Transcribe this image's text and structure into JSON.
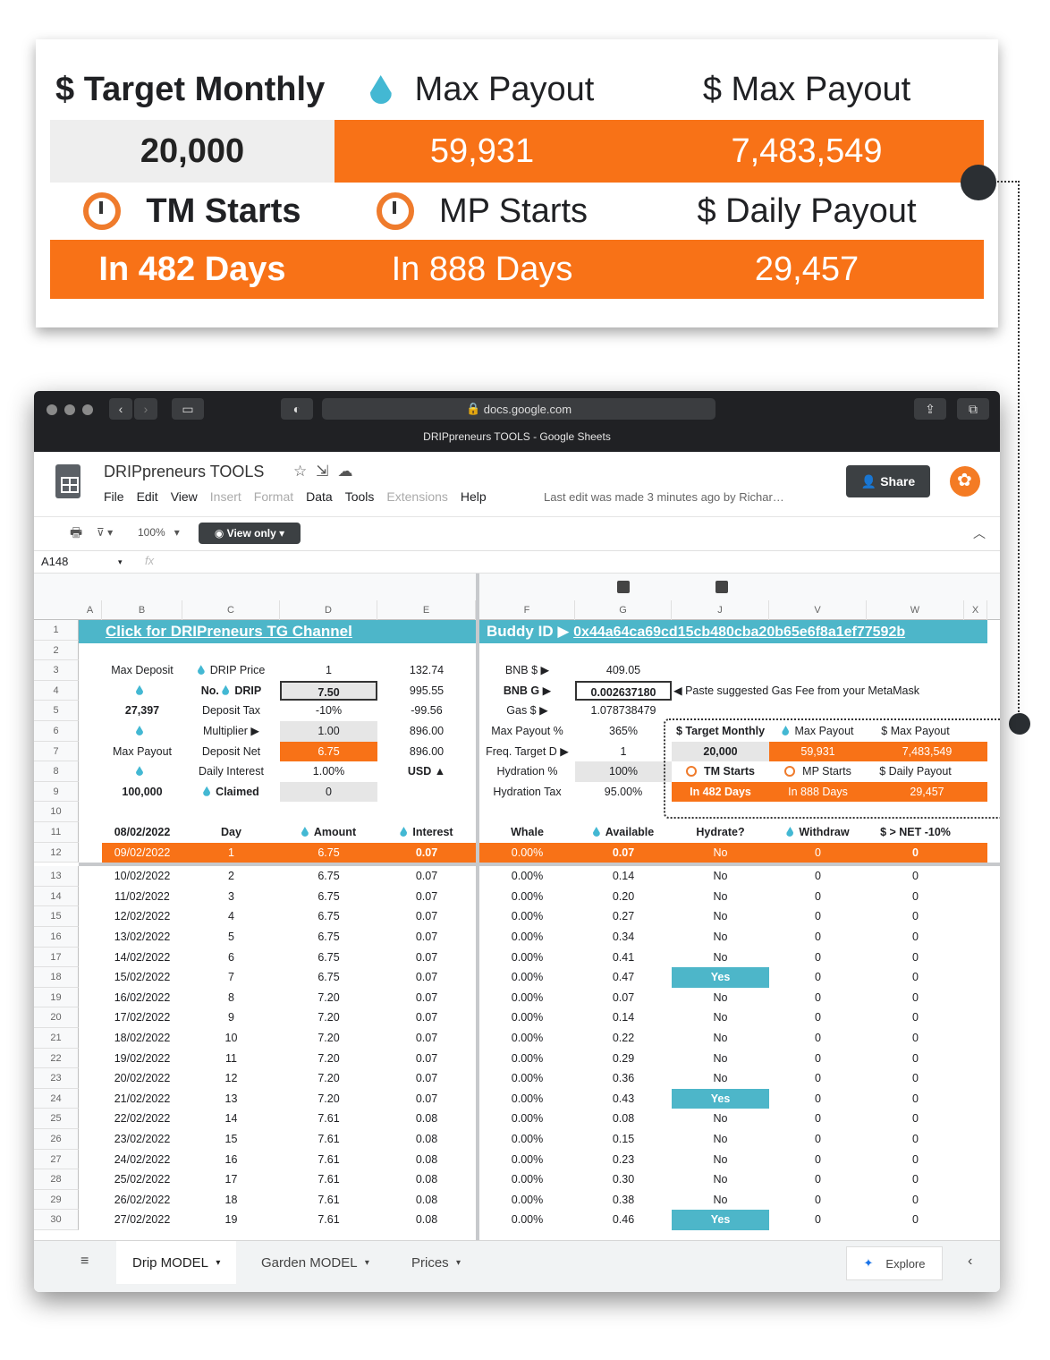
{
  "callout": {
    "h1": "$ Target Monthly",
    "h2": "Max Payout",
    "h3": "$ Max Payout",
    "v1": "20,000",
    "v2": "59,931",
    "v3": "7,483,549",
    "h4": "TM Starts",
    "h5": "MP Starts",
    "h6": "$ Daily Payout",
    "v4": "In 482 Days",
    "v5": "In 888 Days",
    "v6": "29,457"
  },
  "browser": {
    "url": "docs.google.com",
    "tab_title": "DRIPpreneurs TOOLS - Google Sheets"
  },
  "sheet": {
    "title": "DRIPpreneurs TOOLS",
    "menus": [
      "File",
      "Edit",
      "View",
      "Insert",
      "Format",
      "Data",
      "Tools",
      "Extensions",
      "Help"
    ],
    "last_edit": "Last edit was made 3 minutes ago by Richar…",
    "share": "Share",
    "zoom": "100%",
    "view_only": "View only",
    "name_box": "A148",
    "fx": "fx"
  },
  "columns": [
    "A",
    "B",
    "C",
    "D",
    "E",
    "F",
    "G",
    "J",
    "V",
    "W",
    "X"
  ],
  "banner": {
    "left": "Click for DRIPreneurs TG Channel",
    "buddy_label": "Buddy ID ▶",
    "buddy_id": "0x44a64ca69cd15cb480cba20b65e6f8a1ef77592b"
  },
  "params": {
    "max_deposit_label": "Max Deposit",
    "drip_price_label": "DRIP Price",
    "drip_price": "1",
    "e3": "132.74",
    "no_label": "No.",
    "drip_label": "DRIP",
    "drip_no": "7.50",
    "e4": "995.55",
    "b5": "27,397",
    "deposit_tax_label": "Deposit Tax",
    "deposit_tax": "-10%",
    "e5": "-99.56",
    "multiplier_label": "Multiplier ▶",
    "multiplier": "1.00",
    "e6": "896.00",
    "max_payout_label": "Max Payout",
    "deposit_net_label": "Deposit Net",
    "deposit_net": "6.75",
    "e7": "896.00",
    "daily_interest_label": "Daily Interest",
    "daily_interest": "1.00%",
    "usd": "USD ▲",
    "b9": "100,000",
    "claimed_label": "Claimed",
    "claimed": "0",
    "bnb_label": "BNB $ ▶",
    "bnb": "409.05",
    "bnbg_label": "BNB G ▶",
    "bnbg": "0.002637180",
    "gas_note": "◀  Paste suggested Gas Fee from your MetaMask",
    "gas_label": "Gas $ ▶",
    "gas": "1.078738479",
    "maxp_label": "Max Payout %",
    "maxp": "365%",
    "freq_label": "Freq. Target D ▶",
    "freq": "1",
    "hyd_label": "Hydration %",
    "hyd": "100%",
    "hydtax_label": "Hydration Tax",
    "hydtax": "95.00%"
  },
  "mini": {
    "h1": "$ Target Monthly",
    "h2": "Max Payout",
    "h3": "$ Max Payout",
    "v1": "20,000",
    "v2": "59,931",
    "v3": "7,483,549",
    "h4": "TM Starts",
    "h5": "MP Starts",
    "h6": "$ Daily Payout",
    "v4": "In 482 Days",
    "v5": "In 888 Days",
    "v6": "29,457"
  },
  "table_header": [
    "08/02/2022",
    "Day",
    "Amount",
    "Interest",
    "Whale",
    "Available",
    "Hydrate?",
    "Withdraw",
    "$ > NET -10%"
  ],
  "rows": [
    [
      "09/02/2022",
      "1",
      "6.75",
      "0.07",
      "0.00%",
      "0.07",
      "No",
      "0",
      "0"
    ],
    [
      "10/02/2022",
      "2",
      "6.75",
      "0.07",
      "0.00%",
      "0.14",
      "No",
      "0",
      "0"
    ],
    [
      "11/02/2022",
      "3",
      "6.75",
      "0.07",
      "0.00%",
      "0.20",
      "No",
      "0",
      "0"
    ],
    [
      "12/02/2022",
      "4",
      "6.75",
      "0.07",
      "0.00%",
      "0.27",
      "No",
      "0",
      "0"
    ],
    [
      "13/02/2022",
      "5",
      "6.75",
      "0.07",
      "0.00%",
      "0.34",
      "No",
      "0",
      "0"
    ],
    [
      "14/02/2022",
      "6",
      "6.75",
      "0.07",
      "0.00%",
      "0.41",
      "No",
      "0",
      "0"
    ],
    [
      "15/02/2022",
      "7",
      "6.75",
      "0.07",
      "0.00%",
      "0.47",
      "Yes",
      "0",
      "0"
    ],
    [
      "16/02/2022",
      "8",
      "7.20",
      "0.07",
      "0.00%",
      "0.07",
      "No",
      "0",
      "0"
    ],
    [
      "17/02/2022",
      "9",
      "7.20",
      "0.07",
      "0.00%",
      "0.14",
      "No",
      "0",
      "0"
    ],
    [
      "18/02/2022",
      "10",
      "7.20",
      "0.07",
      "0.00%",
      "0.22",
      "No",
      "0",
      "0"
    ],
    [
      "19/02/2022",
      "11",
      "7.20",
      "0.07",
      "0.00%",
      "0.29",
      "No",
      "0",
      "0"
    ],
    [
      "20/02/2022",
      "12",
      "7.20",
      "0.07",
      "0.00%",
      "0.36",
      "No",
      "0",
      "0"
    ],
    [
      "21/02/2022",
      "13",
      "7.20",
      "0.07",
      "0.00%",
      "0.43",
      "Yes",
      "0",
      "0"
    ],
    [
      "22/02/2022",
      "14",
      "7.61",
      "0.08",
      "0.00%",
      "0.08",
      "No",
      "0",
      "0"
    ],
    [
      "23/02/2022",
      "15",
      "7.61",
      "0.08",
      "0.00%",
      "0.15",
      "No",
      "0",
      "0"
    ],
    [
      "24/02/2022",
      "16",
      "7.61",
      "0.08",
      "0.00%",
      "0.23",
      "No",
      "0",
      "0"
    ],
    [
      "25/02/2022",
      "17",
      "7.61",
      "0.08",
      "0.00%",
      "0.30",
      "No",
      "0",
      "0"
    ],
    [
      "26/02/2022",
      "18",
      "7.61",
      "0.08",
      "0.00%",
      "0.38",
      "No",
      "0",
      "0"
    ],
    [
      "27/02/2022",
      "19",
      "7.61",
      "0.08",
      "0.00%",
      "0.46",
      "Yes",
      "0",
      "0"
    ]
  ],
  "row_numbers": [
    "1",
    "2",
    "3",
    "4",
    "5",
    "6",
    "7",
    "8",
    "9",
    "10",
    "11",
    "12",
    "13",
    "14",
    "15",
    "16",
    "17",
    "18",
    "19",
    "20",
    "21",
    "22",
    "23",
    "24",
    "25",
    "26",
    "27",
    "28",
    "29",
    "30"
  ],
  "tabs": [
    "Drip MODEL",
    "Garden MODEL",
    "Prices"
  ],
  "explore": "Explore",
  "colors": {
    "orange": "#f87217",
    "teal": "#4db6c9",
    "drop": "#43b8d3"
  }
}
